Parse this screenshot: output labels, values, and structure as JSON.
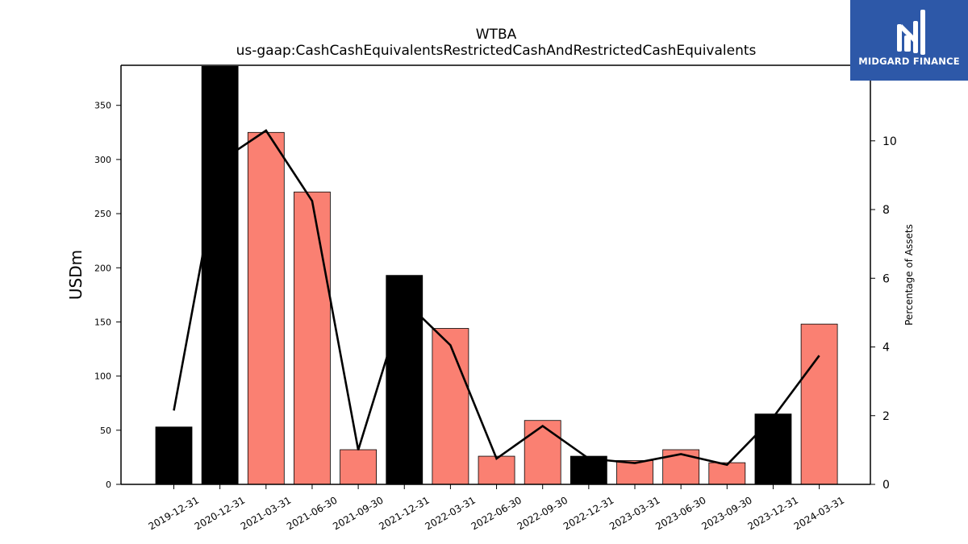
{
  "chart_data": {
    "type": "bar",
    "title": "WTBA",
    "subtitle": "us-gaap:CashCashEquivalentsRestrictedCashAndRestrictedCashEquivalents",
    "ylabel": "USDm",
    "y2label": "Percentage of Assets",
    "categories": [
      "2019-12-31",
      "2020-12-31",
      "2021-03-31",
      "2021-06-30",
      "2021-09-30",
      "2021-12-31",
      "2022-03-31",
      "2022-06-30",
      "2022-09-30",
      "2022-12-31",
      "2023-03-31",
      "2023-06-30",
      "2023-09-30",
      "2023-12-31",
      "2024-03-31"
    ],
    "series": [
      {
        "values": [
          53,
          386,
          325,
          270,
          32,
          193,
          144,
          26,
          59,
          26,
          22,
          32,
          20,
          65,
          148
        ],
        "colors": [
          "#000000",
          "#000000",
          "#fa8072",
          "#fa8072",
          "#fa8072",
          "#000000",
          "#fa8072",
          "#fa8072",
          "#fa8072",
          "#000000",
          "#fa8072",
          "#fa8072",
          "#fa8072",
          "#000000",
          "#fa8072"
        ]
      },
      {
        "values": [
          2.15,
          9.4,
          10.3,
          8.25,
          1.0,
          5.35,
          4.05,
          0.75,
          1.7,
          0.75,
          0.62,
          0.88,
          0.57,
          1.95,
          3.75
        ]
      }
    ],
    "yticks": [
      0,
      50,
      100,
      150,
      200,
      250,
      300,
      350
    ],
    "ylim": [
      0,
      387
    ],
    "y2ticks": [
      0,
      2,
      4,
      6,
      8,
      10
    ],
    "y2lim": [
      0,
      12.2
    ],
    "colors": {
      "annual": "#000000",
      "quarterly": "#fa8072",
      "line": "#000000"
    }
  },
  "logo": {
    "text": "MIDGARD FINANCE"
  }
}
